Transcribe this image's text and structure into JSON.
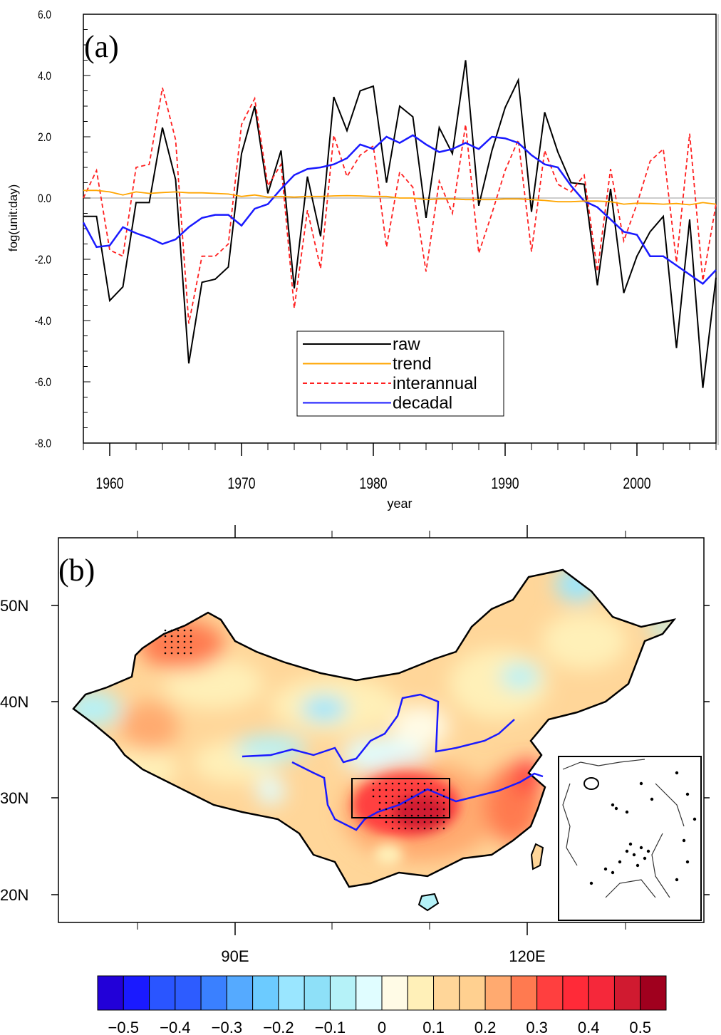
{
  "chart_data": [
    {
      "panel_label": "(a)",
      "type": "line",
      "xlabel": "year",
      "ylabel": "fog(unit:day)",
      "xlim": [
        1958,
        2006
      ],
      "ylim": [
        -8.0,
        6.0
      ],
      "x_ticks": [
        "1960",
        "1970",
        "1980",
        "1990",
        "2000"
      ],
      "y_ticks": [
        "6.0",
        "4.0",
        "2.0",
        "0.0",
        "-2.0",
        "-4.0",
        "-6.0",
        "-8.0"
      ],
      "legend_position": "bottom-center",
      "x": [
        1958,
        1959,
        1960,
        1961,
        1962,
        1963,
        1964,
        1965,
        1966,
        1967,
        1968,
        1969,
        1970,
        1971,
        1972,
        1973,
        1974,
        1975,
        1976,
        1977,
        1978,
        1979,
        1980,
        1981,
        1982,
        1983,
        1984,
        1985,
        1986,
        1987,
        1988,
        1989,
        1990,
        1991,
        1992,
        1993,
        1994,
        1995,
        1996,
        1997,
        1998,
        1999,
        2000,
        2001,
        2002,
        2003,
        2004,
        2005,
        2006
      ],
      "series": [
        {
          "name": "raw",
          "color": "#000000",
          "dash": false,
          "values": [
            -0.6,
            -0.6,
            -3.35,
            -2.9,
            -0.15,
            -0.15,
            2.3,
            0.6,
            -5.4,
            -2.75,
            -2.65,
            -2.25,
            1.45,
            3.0,
            0.15,
            1.55,
            -2.95,
            0.7,
            -1.25,
            3.3,
            2.2,
            3.5,
            3.65,
            0.5,
            3.0,
            2.65,
            -0.65,
            2.3,
            1.45,
            4.5,
            -0.25,
            1.55,
            2.95,
            3.85,
            -0.45,
            2.8,
            1.5,
            0.5,
            0.45,
            -2.85,
            0.3,
            -3.1,
            -1.9,
            -1.1,
            -0.6,
            -4.9,
            -0.7,
            -6.2,
            -2.6
          ]
        },
        {
          "name": "trend",
          "color": "#ffa500",
          "dash": false,
          "values": [
            0.25,
            0.25,
            0.2,
            0.1,
            0.2,
            0.15,
            0.18,
            0.2,
            0.17,
            0.17,
            0.15,
            0.13,
            0.05,
            0.1,
            0.03,
            0.05,
            0.03,
            0.05,
            0.05,
            0.07,
            0.08,
            0.07,
            0.05,
            0.05,
            0.0,
            0.0,
            -0.05,
            -0.03,
            -0.03,
            -0.05,
            -0.05,
            -0.05,
            -0.03,
            -0.03,
            -0.05,
            -0.08,
            -0.12,
            -0.12,
            -0.1,
            -0.1,
            -0.12,
            -0.2,
            -0.17,
            -0.18,
            -0.2,
            -0.18,
            -0.22,
            -0.15,
            -0.2
          ]
        },
        {
          "name": "interannual",
          "color": "#ff2020",
          "dash": true,
          "values": [
            0.0,
            0.9,
            -1.7,
            -1.9,
            1.0,
            1.1,
            3.6,
            1.9,
            -4.1,
            -1.9,
            -1.9,
            -1.5,
            2.4,
            3.25,
            0.4,
            1.1,
            -3.6,
            -0.4,
            -2.3,
            2.05,
            0.7,
            1.4,
            1.7,
            -1.6,
            0.85,
            0.35,
            -2.4,
            0.55,
            -0.5,
            2.4,
            -1.8,
            -0.5,
            0.9,
            1.9,
            -1.75,
            1.55,
            0.45,
            0.2,
            0.75,
            -2.4,
            0.95,
            -1.4,
            -0.2,
            1.2,
            1.6,
            -2.1,
            2.1,
            -2.7,
            -0.2
          ]
        },
        {
          "name": "decadal",
          "color": "#1a1aff",
          "dash": false,
          "values": [
            -0.8,
            -1.6,
            -1.55,
            -0.95,
            -1.15,
            -1.3,
            -1.5,
            -1.35,
            -0.95,
            -0.65,
            -0.55,
            -0.55,
            -0.9,
            -0.35,
            -0.2,
            0.3,
            0.75,
            0.95,
            1.0,
            1.1,
            1.3,
            1.75,
            1.6,
            2.0,
            1.8,
            2.05,
            1.75,
            1.5,
            1.6,
            1.8,
            1.6,
            2.0,
            1.95,
            1.8,
            1.4,
            1.1,
            1.0,
            0.4,
            -0.1,
            -0.3,
            -0.7,
            -1.1,
            -1.2,
            -1.9,
            -1.9,
            -2.2,
            -2.5,
            -2.8,
            -2.35
          ]
        }
      ]
    },
    {
      "panel_label": "(b)",
      "type": "heatmap",
      "lat_ticks": [
        "50N",
        "40N",
        "30N",
        "20N"
      ],
      "lon_ticks": [
        "90E",
        "120E"
      ],
      "colorbar": {
        "levels": [
          "−0.5",
          "−0.4",
          "−0.3",
          "−0.2",
          "−0.1",
          "0",
          "0.1",
          "0.2",
          "0.3",
          "0.4",
          "0.5"
        ],
        "colors": [
          "#2200d8",
          "#1a1aff",
          "#2a55ff",
          "#2d5cff",
          "#3a80ff",
          "#55aaff",
          "#6ccbff",
          "#9ae6ff",
          "#8ee0f8",
          "#b5f2f8",
          "#e0fdff",
          "#fffbe6",
          "#fff0b8",
          "#ffd699",
          "#ffd090",
          "#ffaa70",
          "#ff7a50",
          "#ff3f3f",
          "#ff2a38",
          "#f5283a",
          "#d01a30",
          "#a0001e"
        ]
      }
    }
  ]
}
